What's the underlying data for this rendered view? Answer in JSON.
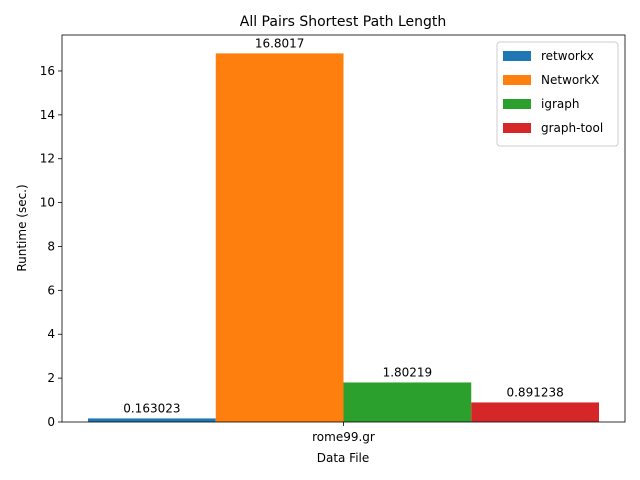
{
  "chart_data": {
    "type": "bar",
    "title": "All Pairs Shortest Path Length",
    "xlabel": "Data File",
    "ylabel": "Runtime (sec.)",
    "categories": [
      "rome99.gr"
    ],
    "ylim": [
      0,
      17.64
    ],
    "yticks": [
      0,
      2,
      4,
      6,
      8,
      10,
      12,
      14,
      16
    ],
    "grid": false,
    "legend_position": "top-right",
    "series": [
      {
        "name": "retworkx",
        "values": [
          0.163023
        ],
        "labels": [
          "0.163023"
        ],
        "color": "#1f77b4"
      },
      {
        "name": "NetworkX",
        "values": [
          16.8017
        ],
        "labels": [
          "16.8017"
        ],
        "color": "#ff7f0e"
      },
      {
        "name": "igraph",
        "values": [
          1.80219
        ],
        "labels": [
          "1.80219"
        ],
        "color": "#2ca02c"
      },
      {
        "name": "graph-tool",
        "values": [
          0.891238
        ],
        "labels": [
          "0.891238"
        ],
        "color": "#d62728"
      }
    ]
  }
}
